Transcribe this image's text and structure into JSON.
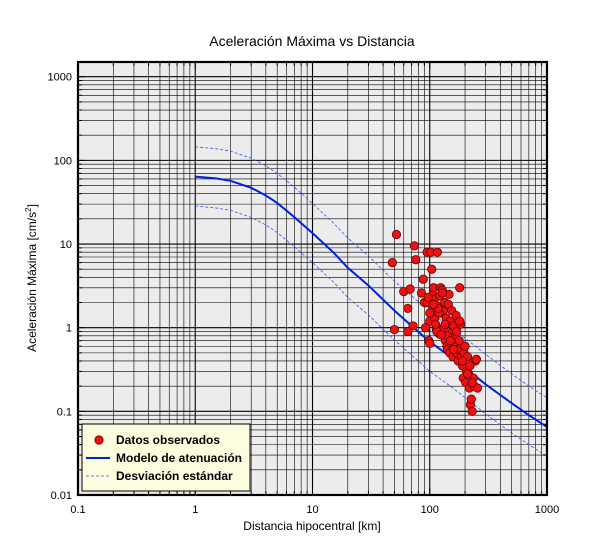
{
  "chart_data": {
    "type": "scatter",
    "title": "Aceleración Máxima vs Distancia",
    "xlabel": "Distancia hipocentral [km]",
    "ylabel": "Aceleración Máxima [cm/s",
    "ylabel_sup": "2",
    "ylabel_end": "]",
    "x_scale": "log",
    "y_scale": "log",
    "xlim": [
      0.1,
      1000
    ],
    "ylim": [
      0.01,
      1500
    ],
    "grid": true,
    "x_ticks": [
      {
        "value": 0.1,
        "label": "0.1"
      },
      {
        "value": 1,
        "label": "1"
      },
      {
        "value": 10,
        "label": "10"
      },
      {
        "value": 100,
        "label": "100"
      },
      {
        "value": 1000,
        "label": "1000"
      }
    ],
    "y_ticks": [
      {
        "value": 0.01,
        "label": "0.01"
      },
      {
        "value": 0.1,
        "label": "0.1"
      },
      {
        "value": 1,
        "label": "1"
      },
      {
        "value": 10,
        "label": "10"
      },
      {
        "value": 100,
        "label": "100"
      },
      {
        "value": 1000,
        "label": "1000"
      }
    ],
    "legend": {
      "position": "bottom-left",
      "entries": [
        {
          "label": "Datos observados",
          "type": "marker",
          "color": "#ee1111"
        },
        {
          "label": "Modelo de atenuación",
          "type": "solid-line",
          "color": "#0022dd"
        },
        {
          "label": "Desviación estándar",
          "type": "dashed-line",
          "color": "#3355ee"
        }
      ]
    },
    "series": [
      {
        "name": "Modelo de atenuación",
        "kind": "line",
        "color": "#0022dd",
        "x": [
          1,
          1.5,
          2,
          3,
          4,
          5,
          7,
          10,
          15,
          20,
          30,
          50,
          70,
          100,
          150,
          200,
          300,
          500,
          700,
          1000
        ],
        "y": [
          64,
          61,
          57,
          47,
          38,
          31,
          21,
          13.5,
          8,
          5.2,
          3.2,
          1.6,
          1.05,
          0.68,
          0.45,
          0.33,
          0.21,
          0.125,
          0.09,
          0.065
        ]
      },
      {
        "name": "Desviación estándar",
        "kind": "dashed",
        "color": "#3355ee",
        "x": [
          1,
          1.5,
          2,
          3,
          4,
          5,
          7,
          10,
          15,
          20,
          30,
          50,
          70,
          100,
          150,
          200,
          300,
          500,
          700,
          1000
        ],
        "y": [
          145,
          138,
          129,
          106,
          86,
          70,
          48,
          30.5,
          18,
          11.8,
          7.2,
          3.6,
          2.4,
          1.55,
          1.0,
          0.75,
          0.48,
          0.28,
          0.2,
          0.145
        ]
      },
      {
        "name": "Desviación estándar",
        "kind": "dashed",
        "color": "#3355ee",
        "x": [
          1,
          1.5,
          2,
          3,
          4,
          5,
          7,
          10,
          15,
          20,
          30,
          50,
          70,
          100,
          150,
          200,
          300,
          500,
          700,
          1000
        ],
        "y": [
          28.5,
          27,
          25.3,
          20.8,
          16.9,
          13.7,
          9.3,
          6.0,
          3.55,
          2.3,
          1.42,
          0.71,
          0.47,
          0.3,
          0.2,
          0.146,
          0.093,
          0.055,
          0.04,
          0.029
        ]
      },
      {
        "name": "Datos observados",
        "kind": "points",
        "color": "#ee1111",
        "x": [
          52,
          48,
          50,
          60,
          65,
          68,
          72,
          74,
          76,
          65,
          88,
          90,
          92,
          95,
          98,
          100,
          102,
          104,
          106,
          108,
          110,
          112,
          114,
          116,
          118,
          120,
          122,
          124,
          126,
          128,
          130,
          132,
          134,
          136,
          138,
          140,
          142,
          144,
          146,
          148,
          150,
          152,
          154,
          156,
          158,
          160,
          162,
          165,
          168,
          170,
          172,
          175,
          178,
          180,
          183,
          186,
          190,
          193,
          196,
          200,
          203,
          206,
          210,
          214,
          218,
          222,
          226,
          230,
          235,
          240,
          245,
          250,
          255,
          85,
          95,
          100,
          105,
          110,
          115,
          120,
          128,
          135,
          142,
          150,
          160,
          170,
          180,
          190,
          200,
          210,
          220,
          230,
          118,
          100,
          108,
          112,
          97,
          125
        ],
        "y": [
          13,
          6,
          0.95,
          2.7,
          1.7,
          2.9,
          1.05,
          9.5,
          6.5,
          0.9,
          3.8,
          2.0,
          1.0,
          8.0,
          0.7,
          0.65,
          8.0,
          5.0,
          2.5,
          3.0,
          2.2,
          1.4,
          0.95,
          8.0,
          1.8,
          0.85,
          2.4,
          3.0,
          1.5,
          2.8,
          1.6,
          1.0,
          2.0,
          0.7,
          1.3,
          0.6,
          0.55,
          1.9,
          2.5,
          0.5,
          1.2,
          0.65,
          1.6,
          0.9,
          0.45,
          1.05,
          0.75,
          0.6,
          1.4,
          0.5,
          0.55,
          0.4,
          0.7,
          3.0,
          1.1,
          0.45,
          0.35,
          0.25,
          0.5,
          0.6,
          0.22,
          0.3,
          0.45,
          0.28,
          0.19,
          0.12,
          0.14,
          0.1,
          0.25,
          0.2,
          0.4,
          0.42,
          0.19,
          2.6,
          2.0,
          1.2,
          1.8,
          1.3,
          0.9,
          1.5,
          2.6,
          1.1,
          0.8,
          0.7,
          0.55,
          0.9,
          1.2,
          0.4,
          0.6,
          0.28,
          0.35,
          0.22,
          1.7,
          1.5,
          1.9,
          1.1,
          2.3,
          0.82
        ]
      }
    ]
  }
}
